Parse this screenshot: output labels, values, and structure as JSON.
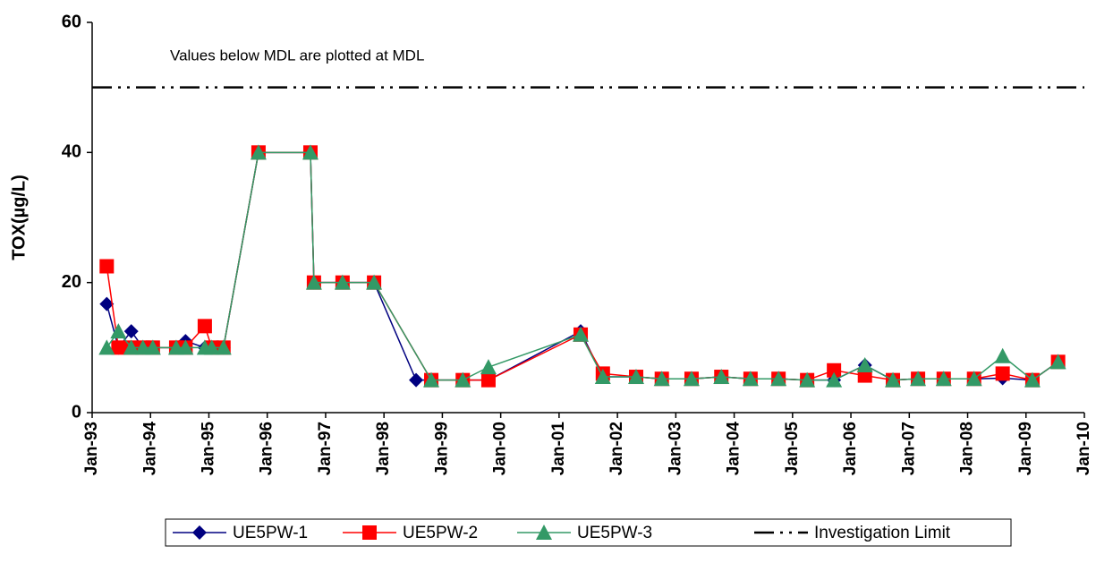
{
  "chart_data": {
    "type": "line",
    "ylabel": "TOX(µg/L)",
    "annotation": "Values below MDL are plotted at MDL",
    "xlim": [
      1993,
      2010
    ],
    "xticks": [
      {
        "value": 1993,
        "label": "Jan-93"
      },
      {
        "value": 1994,
        "label": "Jan-94"
      },
      {
        "value": 1995,
        "label": "Jan-95"
      },
      {
        "value": 1996,
        "label": "Jan-96"
      },
      {
        "value": 1997,
        "label": "Jan-97"
      },
      {
        "value": 1998,
        "label": "Jan-98"
      },
      {
        "value": 1999,
        "label": "Jan-99"
      },
      {
        "value": 2000,
        "label": "Jan-00"
      },
      {
        "value": 2001,
        "label": "Jan-01"
      },
      {
        "value": 2002,
        "label": "Jan-02"
      },
      {
        "value": 2003,
        "label": "Jan-03"
      },
      {
        "value": 2004,
        "label": "Jan-04"
      },
      {
        "value": 2005,
        "label": "Jan-05"
      },
      {
        "value": 2006,
        "label": "Jan-06"
      },
      {
        "value": 2007,
        "label": "Jan-07"
      },
      {
        "value": 2008,
        "label": "Jan-08"
      },
      {
        "value": 2009,
        "label": "Jan-09"
      },
      {
        "value": 2010,
        "label": "Jan-10"
      }
    ],
    "ylim": [
      0,
      60
    ],
    "yticks": [
      0,
      20,
      40,
      60
    ],
    "limit_line": {
      "name": "Investigation Limit",
      "value": 50,
      "color": "#000000"
    },
    "series": [
      {
        "name": "UE5PW-1",
        "color": "#000080",
        "marker": "diamond",
        "x": [
          1993.25,
          1993.45,
          1993.67,
          1993.87,
          1994.04,
          1994.44,
          1994.6,
          1994.93,
          1995.05,
          1995.25,
          1995.85,
          1996.74,
          1996.8,
          1997.29,
          1997.83,
          1998.55,
          1998.81,
          1999.35,
          1999.79,
          2001.37,
          2001.75,
          2002.32,
          2002.76,
          2003.27,
          2003.78,
          2004.28,
          2004.76,
          2005.25,
          2005.71,
          2006.24,
          2006.72,
          2007.15,
          2007.59,
          2008.11,
          2008.6,
          2009.11,
          2009.55
        ],
        "values": [
          16.7,
          10,
          12.5,
          10,
          10,
          10,
          11,
          10,
          10,
          10,
          40,
          40,
          20,
          20,
          20,
          5,
          5,
          5,
          5,
          12.5,
          5.5,
          5.5,
          5.2,
          5.2,
          5.5,
          5.2,
          5.2,
          5,
          5,
          7.3,
          5,
          5.2,
          5.2,
          5.2,
          5.3,
          5,
          7.8
        ]
      },
      {
        "name": "UE5PW-2",
        "color": "#ff0000",
        "marker": "square",
        "x": [
          1993.25,
          1993.45,
          1993.67,
          1993.87,
          1994.04,
          1994.44,
          1994.6,
          1994.93,
          1995.05,
          1995.25,
          1995.85,
          1996.74,
          1996.8,
          1997.29,
          1997.83,
          1998.81,
          1999.35,
          1999.79,
          2001.37,
          2001.75,
          2002.32,
          2002.76,
          2003.27,
          2003.78,
          2004.28,
          2004.76,
          2005.25,
          2005.71,
          2006.24,
          2006.72,
          2007.15,
          2007.59,
          2008.11,
          2008.6,
          2009.11,
          2009.55
        ],
        "values": [
          22.5,
          10,
          10,
          10,
          10,
          10,
          10,
          13.3,
          10,
          10,
          40,
          40,
          20,
          20,
          20,
          5,
          5,
          5,
          12,
          6,
          5.5,
          5.2,
          5.2,
          5.5,
          5.2,
          5.2,
          5,
          6.5,
          5.7,
          5,
          5.2,
          5.2,
          5.2,
          6,
          5,
          7.8
        ]
      },
      {
        "name": "UE5PW-3",
        "color": "#339966",
        "marker": "triangle",
        "x": [
          1993.25,
          1993.45,
          1993.67,
          1993.87,
          1994.04,
          1994.44,
          1994.6,
          1994.93,
          1995.05,
          1995.25,
          1995.85,
          1996.74,
          1996.8,
          1997.29,
          1997.83,
          1998.81,
          1999.35,
          1999.79,
          2001.37,
          2001.75,
          2002.32,
          2002.76,
          2003.27,
          2003.78,
          2004.28,
          2004.76,
          2005.25,
          2005.71,
          2006.24,
          2006.72,
          2007.15,
          2007.59,
          2008.11,
          2008.6,
          2009.11,
          2009.55
        ],
        "values": [
          10,
          12.5,
          10,
          10,
          10,
          10,
          10,
          10,
          10,
          10,
          40,
          40,
          20,
          20,
          20,
          5,
          5,
          7,
          12,
          5.5,
          5.5,
          5.2,
          5.2,
          5.5,
          5.2,
          5.2,
          5,
          5,
          7.3,
          5,
          5.2,
          5.2,
          5.2,
          8.7,
          5,
          7.8
        ]
      }
    ]
  }
}
